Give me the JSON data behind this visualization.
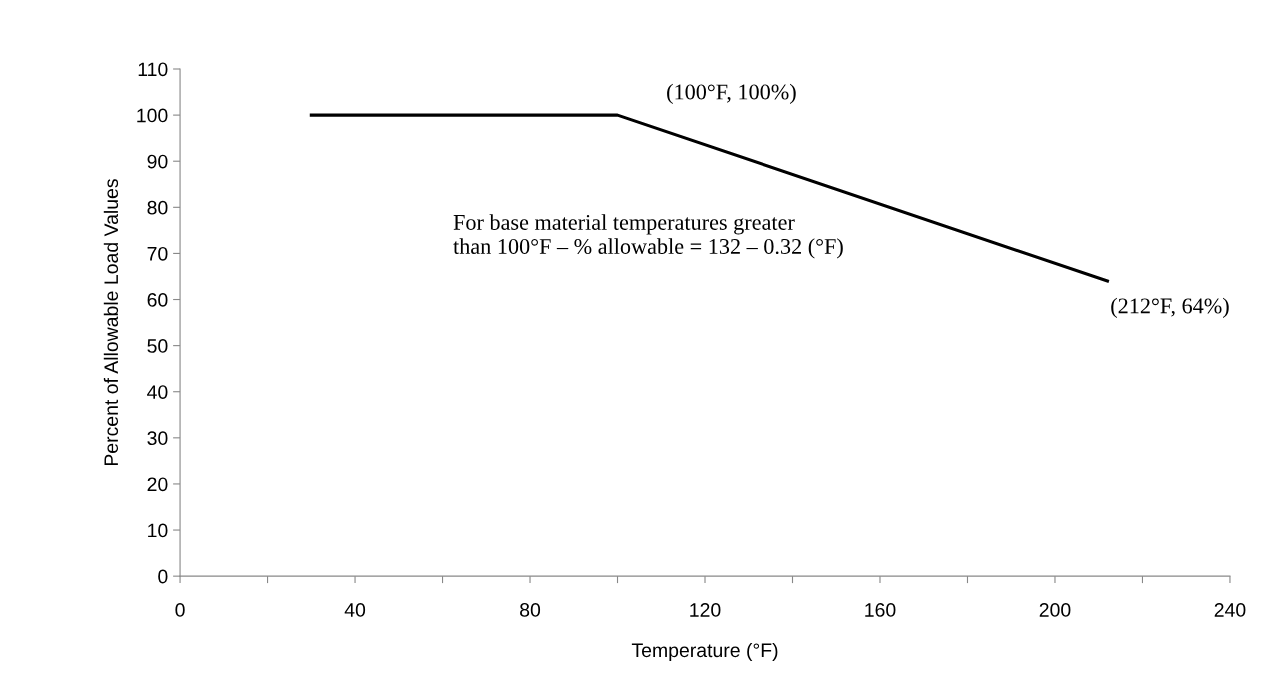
{
  "chart_data": {
    "type": "line",
    "xlabel": "Temperature (°F)",
    "ylabel": "Percent of Allowable Load Values",
    "x": [
      30,
      100,
      212
    ],
    "series": [
      {
        "color": "#000000",
        "values": [
          100,
          100,
          64
        ]
      }
    ],
    "xlim": [
      0,
      240
    ],
    "ylim": [
      0,
      110
    ],
    "xticks": [
      0,
      {
        "value": 20,
        "label": null
      },
      40,
      {
        "value": 60,
        "label": null
      },
      80,
      {
        "value": 100,
        "label": null
      },
      120,
      {
        "value": 140,
        "label": null
      },
      160,
      {
        "value": 180,
        "label": null
      },
      200,
      {
        "value": 220,
        "label": null
      },
      240
    ],
    "yticks": [
      0,
      10,
      20,
      30,
      40,
      50,
      60,
      70,
      80,
      90,
      100,
      110
    ],
    "grid": false,
    "legend": false,
    "marker": "none",
    "line_style": "solid",
    "annotations": [
      {
        "text": "(100°F, 100%)",
        "x": 100,
        "y": 100
      },
      {
        "text": "(212°F, 64%)",
        "x": 212,
        "y": 64
      },
      "For base material temperatures greater\nthan 100°F – % allowable = 132 – 0.32 (°F)"
    ]
  }
}
